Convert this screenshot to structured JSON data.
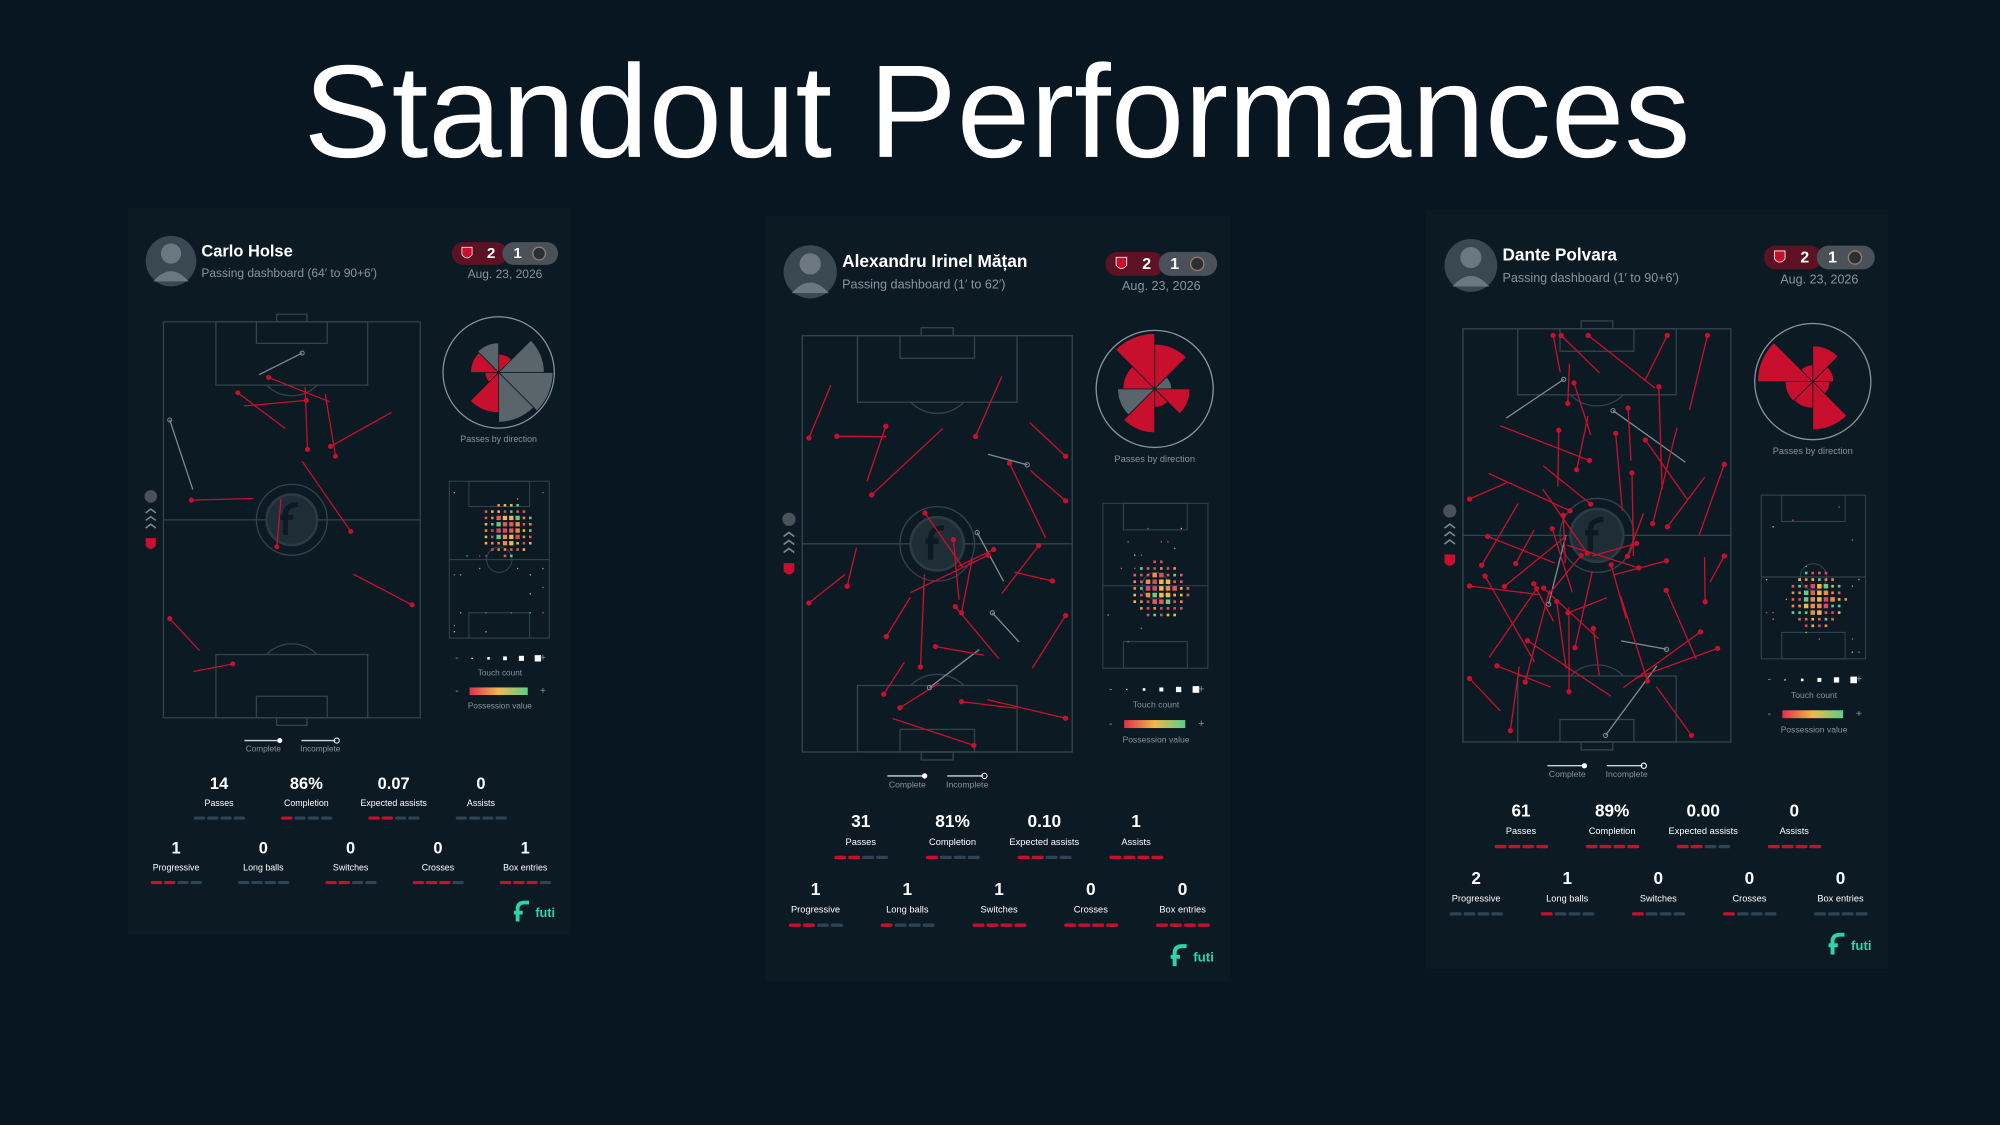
{
  "header": {
    "title": "Standout Performances"
  },
  "labels": {
    "direction": "Passes by direction",
    "touch": "Touch count",
    "possession": "Possession value",
    "complete": "Complete",
    "incomplete": "Incomplete",
    "minus": "-",
    "plus": "+",
    "brand": "futi"
  },
  "cards": [
    {
      "name": "Carlo Holse",
      "subtitle": "Passing dashboard (64′ to 90+6′)",
      "score": {
        "home": 2,
        "away": 1
      },
      "date": "Aug. 23, 2026",
      "stats_top": [
        {
          "value": "14",
          "label": "Passes"
        },
        {
          "value": "86%",
          "label": "Completion"
        },
        {
          "value": "0.07",
          "label": "Expected assists"
        },
        {
          "value": "0",
          "label": "Assists"
        }
      ],
      "stats_bottom": [
        {
          "value": "1",
          "label": "Progressive"
        },
        {
          "value": "0",
          "label": "Long balls"
        },
        {
          "value": "0",
          "label": "Switches"
        },
        {
          "value": "0",
          "label": "Crosses"
        },
        {
          "value": "1",
          "label": "Box entries"
        }
      ]
    },
    {
      "name": "Alexandru Irinel Mățan",
      "subtitle": "Passing dashboard (1′ to 62′)",
      "score": {
        "home": 2,
        "away": 1
      },
      "date": "Aug. 23, 2026",
      "stats_top": [
        {
          "value": "31",
          "label": "Passes"
        },
        {
          "value": "81%",
          "label": "Completion"
        },
        {
          "value": "0.10",
          "label": "Expected assists"
        },
        {
          "value": "1",
          "label": "Assists"
        }
      ],
      "stats_bottom": [
        {
          "value": "1",
          "label": "Progressive"
        },
        {
          "value": "1",
          "label": "Long balls"
        },
        {
          "value": "1",
          "label": "Switches"
        },
        {
          "value": "0",
          "label": "Crosses"
        },
        {
          "value": "0",
          "label": "Box entries"
        }
      ]
    },
    {
      "name": "Dante Polvara",
      "subtitle": "Passing dashboard (1′ to 90+6′)",
      "score": {
        "home": 2,
        "away": 1
      },
      "date": "Aug. 23, 2026",
      "stats_top": [
        {
          "value": "61",
          "label": "Passes"
        },
        {
          "value": "89%",
          "label": "Completion"
        },
        {
          "value": "0.00",
          "label": "Expected assists"
        },
        {
          "value": "0",
          "label": "Assists"
        }
      ],
      "stats_bottom": [
        {
          "value": "2",
          "label": "Progressive"
        },
        {
          "value": "1",
          "label": "Long balls"
        },
        {
          "value": "0",
          "label": "Switches"
        },
        {
          "value": "0",
          "label": "Crosses"
        },
        {
          "value": "0",
          "label": "Box entries"
        }
      ]
    }
  ]
}
